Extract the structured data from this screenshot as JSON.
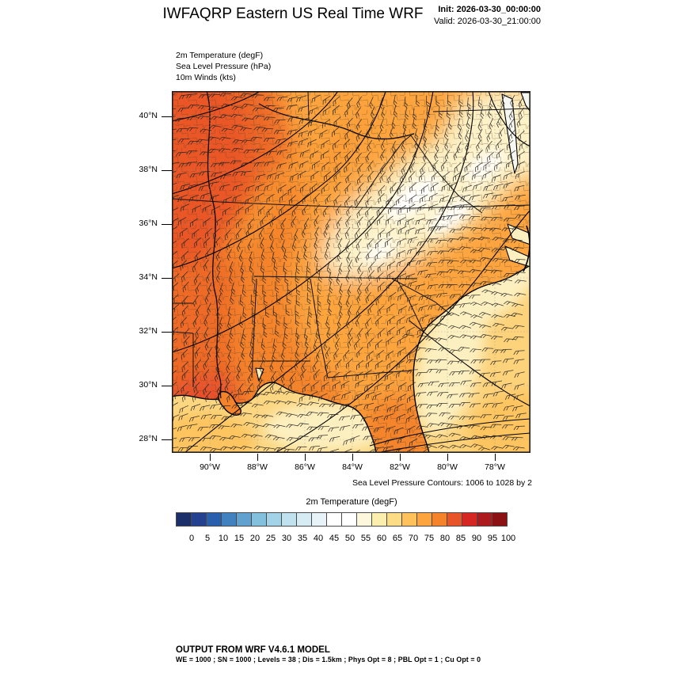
{
  "header": {
    "title": "IWFAQRP Eastern US Real Time WRF",
    "init_line": "Init: 2026-03-30_00:00:00",
    "valid_line": "Valid: 2026-03-30_21:00:00"
  },
  "field_labels": {
    "temperature": "2m Temperature   (degF)",
    "pressure": "Sea Level Pressure   (hPa)",
    "winds": "10m Winds   (kts)"
  },
  "map": {
    "lat_labels": [
      "40°N",
      "38°N",
      "36°N",
      "34°N",
      "32°N",
      "30°N",
      "28°N"
    ],
    "lon_labels": [
      "90°W",
      "88°W",
      "86°W",
      "84°W",
      "82°W",
      "80°W",
      "78°W"
    ],
    "contour_note": "Sea Level Pressure Contours: 1006 to 1028 by 2",
    "pressure_contours": {
      "min": 1006,
      "max": 1028,
      "interval": 2
    }
  },
  "colorbar": {
    "title": "2m Temperature  (degF)",
    "tick_labels": [
      "0",
      "5",
      "10",
      "15",
      "20",
      "25",
      "30",
      "35",
      "40",
      "45",
      "50",
      "55",
      "60",
      "65",
      "70",
      "75",
      "80",
      "85",
      "90",
      "95",
      "100"
    ],
    "colors": [
      "#1d2f6b",
      "#24418f",
      "#2a5fad",
      "#4281bf",
      "#60a1cf",
      "#83c0dd",
      "#a3d3e8",
      "#c0e1ee",
      "#d6ebf4",
      "#e8f3f9",
      "#ffffff",
      "#ffffff",
      "#fdf8dc",
      "#fceeae",
      "#fcdc84",
      "#fdc25c",
      "#fda43e",
      "#f5832b",
      "#e85427",
      "#d62622",
      "#ad1a1d",
      "#8c1114"
    ]
  },
  "map_colors": {
    "base_orange": "#fda43e",
    "deep_orange": "#ee6a25",
    "hot_orange_red": "#e8502a",
    "mid_orange": "#f5832b",
    "light_orange": "#fb9832",
    "pale_yellow_band": "#fdf2c8",
    "white_patch": "#ffffff",
    "gulf_tan": "#fcd681",
    "atlantic_tan": "#fcd27a",
    "offshore_tan": "#fdc45f",
    "coastal_cream": "#fdf0c0",
    "bay_water": "#f7f7f2",
    "line_black": "#111111",
    "county_brown": "#5a4526"
  },
  "footer": {
    "line1": "OUTPUT FROM WRF V4.6.1 MODEL",
    "line2": "WE = 1000 ; SN = 1000 ; Levels = 38 ; Dis = 1.5km ; Phys Opt = 8 ; PBL Opt = 1 ; Cu Opt = 0"
  }
}
